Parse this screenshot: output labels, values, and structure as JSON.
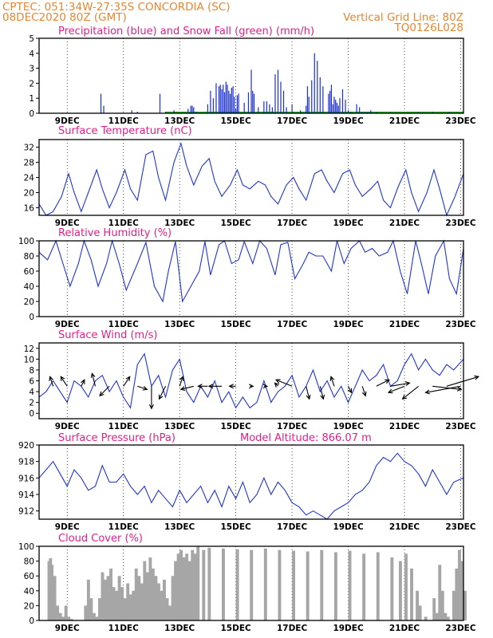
{
  "header": {
    "line1_left": "CPTEC:   051:34W-27:35S   CONCORDIA (SC)",
    "line2_left": "08DEC2020 80Z (GMT)",
    "line1_right": "Vertical Grid Line: 80Z",
    "line2_right": "TQ0126L028"
  },
  "colors": {
    "header": "#e8862e",
    "panel_title": "#e0208a",
    "line": "#2035d0",
    "rain": "#2035d0",
    "snow": "#22aa22",
    "cloud": "#a6a6a6"
  },
  "chart_data": [
    {
      "id": "precip",
      "type": "bar",
      "title": "Precipitation (blue) and Snow Fall (green) (mm/h)",
      "ylim": [
        0,
        5
      ],
      "yticks": [
        0,
        1,
        2,
        3,
        4,
        5
      ],
      "xticks": [
        "9DEC",
        "11DEC",
        "13DEC",
        "15DEC",
        "17DEC",
        "19DEC",
        "21DEC",
        "23DEC"
      ],
      "x_day_offsets": [
        1,
        3,
        5,
        7,
        9,
        11,
        13,
        15
      ],
      "x_days_span": 15.1,
      "snow_fall": 0,
      "x": [
        2.2,
        2.3,
        3.3,
        3.5,
        4.3,
        4.5,
        4.8,
        5.3,
        5.4,
        5.45,
        5.5,
        5.6,
        6.0,
        6.1,
        6.2,
        6.3,
        6.4,
        6.45,
        6.5,
        6.55,
        6.6,
        6.65,
        6.7,
        6.75,
        6.8,
        6.85,
        6.9,
        6.95,
        7.0,
        7.05,
        7.1,
        7.3,
        7.45,
        7.55,
        7.6,
        7.65,
        7.8,
        8.0,
        8.1,
        8.2,
        8.3,
        8.4,
        8.5,
        8.6,
        8.7,
        8.8,
        9.0,
        9.3,
        9.5,
        9.55,
        9.6,
        9.7,
        9.8,
        9.9,
        10.0,
        10.1,
        10.3,
        10.35,
        10.4,
        10.45,
        10.5,
        10.55,
        10.6,
        10.65,
        10.7,
        10.8,
        10.9,
        11.0,
        11.1,
        11.3,
        11.4,
        11.5,
        11.6,
        11.7,
        11.8,
        12.0,
        12.5,
        13.5,
        14.0,
        14.6
      ],
      "values": [
        1.3,
        0.5,
        0.2,
        0.1,
        1.3,
        0.1,
        0.2,
        0.3,
        0.5,
        0.5,
        0.4,
        0.1,
        0.6,
        1.5,
        1.0,
        2.0,
        1.8,
        1.9,
        1.6,
        1.9,
        1.4,
        2.1,
        1.9,
        1.5,
        1.3,
        1.7,
        1.8,
        1.1,
        0.3,
        1.2,
        1.3,
        0.7,
        1.4,
        2.9,
        1.5,
        1.3,
        0.4,
        0.8,
        0.8,
        0.6,
        0.4,
        2.6,
        2.9,
        2.1,
        1.5,
        0.4,
        0.6,
        0.2,
        0.5,
        1.8,
        1.1,
        2.2,
        4.0,
        3.5,
        2.4,
        1.8,
        1.3,
        1.5,
        1.9,
        0.6,
        1.1,
        0.9,
        0.7,
        0.5,
        1.0,
        1.6,
        0.9,
        0.2,
        0.1,
        0.6,
        0.4,
        0.1,
        0.1,
        0.1,
        0.2,
        0.1,
        0.1,
        0.1,
        0.1,
        0.1
      ]
    },
    {
      "id": "temperature",
      "type": "line",
      "title": "Surface Temperature (nC)",
      "ylim": [
        14,
        34
      ],
      "yticks": [
        16,
        20,
        24,
        28,
        32
      ],
      "xticks": [
        "9DEC",
        "11DEC",
        "13DEC",
        "15DEC",
        "17DEC",
        "19DEC",
        "21DEC",
        "23DEC"
      ],
      "x_day_offsets": [
        1,
        3,
        5,
        7,
        9,
        11,
        13,
        15
      ],
      "x_days_span": 15.1,
      "x": [
        0.0,
        0.25,
        0.5,
        0.8,
        1.05,
        1.25,
        1.5,
        1.75,
        2.05,
        2.25,
        2.5,
        2.75,
        3.05,
        3.25,
        3.5,
        3.8,
        4.05,
        4.25,
        4.5,
        4.8,
        5.05,
        5.25,
        5.5,
        5.8,
        6.05,
        6.25,
        6.5,
        6.8,
        7.05,
        7.25,
        7.5,
        7.8,
        8.05,
        8.25,
        8.5,
        8.8,
        9.05,
        9.25,
        9.5,
        9.8,
        10.05,
        10.25,
        10.5,
        10.8,
        11.05,
        11.25,
        11.5,
        11.8,
        12.05,
        12.25,
        12.5,
        12.8,
        13.05,
        13.25,
        13.5,
        13.8,
        14.05,
        14.25,
        14.5,
        14.8,
        15.1
      ],
      "values": [
        17,
        14,
        15,
        19,
        25,
        20,
        15,
        20,
        26,
        21,
        16,
        20,
        26,
        21,
        18,
        30,
        31,
        24,
        18,
        28,
        33,
        27,
        22,
        27,
        29,
        23,
        19,
        22,
        26,
        22,
        21,
        23,
        22,
        19,
        17,
        22,
        24,
        21,
        18,
        25,
        26,
        23,
        20,
        25,
        26,
        22,
        19,
        21,
        23,
        18,
        16,
        22,
        26,
        20,
        15,
        20,
        26,
        21,
        14,
        19,
        25
      ]
    },
    {
      "id": "humidity",
      "type": "line",
      "title": "Relative Humidity (%)",
      "ylim": [
        0,
        100
      ],
      "yticks": [
        0,
        20,
        40,
        60,
        80,
        100
      ],
      "xticks": [
        "9DEC",
        "11DEC",
        "13DEC",
        "15DEC",
        "17DEC",
        "19DEC",
        "21DEC",
        "23DEC"
      ],
      "x_day_offsets": [
        1,
        3,
        5,
        7,
        9,
        11,
        13,
        15
      ],
      "x_days_span": 15.1,
      "x": [
        0.0,
        0.3,
        0.6,
        0.85,
        1.1,
        1.4,
        1.6,
        1.85,
        2.1,
        2.4,
        2.6,
        2.85,
        3.1,
        3.5,
        3.8,
        4.1,
        4.4,
        4.6,
        4.85,
        5.1,
        5.4,
        5.7,
        5.9,
        6.1,
        6.4,
        6.6,
        6.85,
        7.1,
        7.3,
        7.6,
        7.85,
        8.1,
        8.4,
        8.6,
        8.85,
        9.1,
        9.4,
        9.6,
        9.85,
        10.1,
        10.4,
        10.6,
        10.85,
        11.1,
        11.4,
        11.6,
        11.85,
        12.1,
        12.4,
        12.6,
        12.85,
        13.1,
        13.4,
        13.6,
        13.85,
        14.1,
        14.4,
        14.6,
        14.85,
        15.1
      ],
      "values": [
        85,
        75,
        100,
        70,
        40,
        70,
        100,
        75,
        40,
        70,
        100,
        70,
        35,
        70,
        98,
        40,
        20,
        60,
        99,
        20,
        40,
        60,
        99,
        55,
        95,
        100,
        70,
        75,
        99,
        70,
        100,
        90,
        55,
        95,
        98,
        50,
        70,
        85,
        80,
        80,
        60,
        100,
        70,
        90,
        100,
        85,
        90,
        80,
        85,
        100,
        60,
        30,
        100,
        70,
        30,
        80,
        100,
        50,
        30,
        90
      ]
    },
    {
      "id": "wind",
      "type": "line",
      "title": "Surface Wind (m/s)",
      "ylim": [
        -1,
        13
      ],
      "yticks": [
        0,
        2,
        4,
        6,
        8,
        10,
        12
      ],
      "xticks": [
        "9DEC",
        "11DEC",
        "13DEC",
        "15DEC",
        "17DEC",
        "19DEC",
        "21DEC",
        "23DEC"
      ],
      "x_day_offsets": [
        1,
        3,
        5,
        7,
        9,
        11,
        13,
        15
      ],
      "x_days_span": 15.1,
      "x": [
        0.0,
        0.25,
        0.5,
        0.75,
        1.0,
        1.25,
        1.5,
        1.75,
        2.0,
        2.25,
        2.5,
        2.75,
        3.0,
        3.25,
        3.5,
        3.75,
        4.0,
        4.25,
        4.5,
        4.75,
        5.0,
        5.25,
        5.5,
        5.75,
        6.0,
        6.25,
        6.5,
        6.75,
        7.0,
        7.25,
        7.5,
        7.75,
        8.0,
        8.25,
        8.5,
        8.75,
        9.0,
        9.25,
        9.5,
        9.75,
        10.0,
        10.25,
        10.5,
        10.75,
        11.0,
        11.25,
        11.5,
        11.75,
        12.0,
        12.25,
        12.5,
        12.75,
        13.0,
        13.25,
        13.5,
        13.75,
        14.0,
        14.25,
        14.5,
        14.75,
        15.1
      ],
      "values": [
        3,
        4,
        6,
        4,
        2,
        6,
        5,
        3,
        6,
        7,
        4,
        6,
        3,
        1,
        9,
        11,
        5,
        7,
        3,
        8,
        10,
        4,
        2,
        5,
        3,
        6,
        2,
        4,
        1,
        3,
        1,
        2,
        6,
        2,
        4,
        5,
        7,
        3,
        5,
        8,
        4,
        6,
        3,
        5,
        2,
        5,
        8,
        6,
        7,
        9,
        5,
        6,
        9,
        11,
        8,
        10,
        8,
        7,
        9,
        8,
        10
      ],
      "vectors": {
        "x": [
          0.5,
          1.0,
          1.5,
          2.0,
          2.5,
          3.0,
          3.5,
          4.0,
          4.5,
          5.0,
          5.5,
          6.0,
          6.5,
          7.0,
          7.5,
          8.0,
          8.5,
          9.0,
          9.5,
          10.0,
          10.5,
          11.0,
          11.5,
          12.0,
          12.5,
          13.0,
          13.5,
          14.0,
          14.5,
          15.0
        ],
        "u": [
          -1,
          -2,
          1,
          -1,
          -3,
          2,
          3,
          0,
          -2,
          1,
          -4,
          -3,
          -4,
          -2,
          1,
          1,
          -1,
          -5,
          1,
          1,
          -1,
          1,
          1,
          4,
          6,
          -5,
          -5,
          9,
          10,
          -11
        ],
        "v": [
          3,
          3,
          2,
          4,
          -3,
          3,
          -1,
          -7,
          -4,
          3,
          -1,
          0,
          0,
          0,
          0,
          0,
          1,
          2,
          -4,
          -4,
          3,
          -2,
          -3,
          2,
          1,
          -2,
          -4,
          -1,
          3,
          -2
        ]
      }
    },
    {
      "id": "pressure",
      "type": "line",
      "title": "Surface Pressure (hPa)",
      "annotation": "Model Altitude: 866.07 m",
      "ylim": [
        911,
        920
      ],
      "yticks": [
        912,
        914,
        916,
        918,
        920
      ],
      "xticks": [
        "9DEC",
        "11DEC",
        "13DEC",
        "15DEC",
        "17DEC",
        "19DEC",
        "21DEC",
        "23DEC"
      ],
      "x_day_offsets": [
        1,
        3,
        5,
        7,
        9,
        11,
        13,
        15
      ],
      "x_days_span": 15.1,
      "x": [
        0.0,
        0.25,
        0.5,
        0.75,
        1.0,
        1.25,
        1.5,
        1.75,
        2.0,
        2.25,
        2.5,
        2.75,
        3.0,
        3.25,
        3.5,
        3.75,
        4.0,
        4.25,
        4.5,
        4.75,
        5.0,
        5.25,
        5.5,
        5.75,
        6.0,
        6.25,
        6.5,
        6.75,
        7.0,
        7.25,
        7.5,
        7.75,
        8.0,
        8.25,
        8.5,
        8.75,
        9.0,
        9.25,
        9.5,
        9.75,
        10.0,
        10.25,
        10.5,
        10.75,
        11.0,
        11.25,
        11.5,
        11.75,
        12.0,
        12.25,
        12.5,
        12.75,
        13.0,
        13.25,
        13.5,
        13.75,
        14.0,
        14.25,
        14.5,
        14.75,
        15.1
      ],
      "values": [
        916,
        917,
        918,
        916.5,
        915,
        917,
        916,
        914.5,
        915,
        917.5,
        915.5,
        915.5,
        916.5,
        915,
        914,
        915,
        913,
        914.5,
        913.5,
        912.5,
        914.5,
        913,
        914,
        915,
        913,
        914.5,
        912.5,
        915,
        913.5,
        915.5,
        913,
        914,
        916,
        914,
        915.5,
        914.5,
        913,
        912.5,
        911.5,
        912,
        911.5,
        911,
        912,
        912.5,
        913,
        914,
        914.5,
        915.5,
        917.5,
        918.5,
        918,
        919,
        918,
        917.5,
        916.5,
        915,
        917,
        915.5,
        914,
        915.5,
        916
      ]
    },
    {
      "id": "cloud",
      "type": "area",
      "title": "Cloud Cover (%)",
      "ylim": [
        0,
        100
      ],
      "yticks": [
        0,
        20,
        40,
        60,
        80,
        100
      ],
      "xticks": [
        "9DEC",
        "11DEC",
        "13DEC",
        "15DEC",
        "17DEC",
        "19DEC",
        "21DEC",
        "23DEC"
      ],
      "x_day_offsets": [
        1,
        3,
        5,
        7,
        9,
        11,
        13,
        15
      ],
      "x_days_span": 15.1,
      "x": [
        0.0,
        0.2,
        0.3,
        0.35,
        0.4,
        0.5,
        0.6,
        0.7,
        0.8,
        0.9,
        1.0,
        1.1,
        1.3,
        1.5,
        1.6,
        1.7,
        1.8,
        1.9,
        2.0,
        2.1,
        2.2,
        2.3,
        2.4,
        2.5,
        2.6,
        2.7,
        2.8,
        2.9,
        3.0,
        3.1,
        3.2,
        3.3,
        3.4,
        3.5,
        3.6,
        3.7,
        3.8,
        3.9,
        4.0,
        4.1,
        4.2,
        4.3,
        4.4,
        4.5,
        4.6,
        4.7,
        4.8,
        4.9,
        5.0,
        5.1,
        5.2,
        5.3,
        5.4,
        5.5,
        5.6,
        5.8,
        6.0,
        6.5,
        7.0,
        7.5,
        8.0,
        8.5,
        9.0,
        9.5,
        10.0,
        10.5,
        11.0,
        11.5,
        12.0,
        12.5,
        12.8,
        13.0,
        13.2,
        13.4,
        13.5,
        13.6,
        13.7,
        13.8,
        13.9,
        14.0,
        14.1,
        14.2,
        14.3,
        14.4,
        14.5,
        14.6,
        14.7,
        14.8,
        14.9,
        15.0,
        15.1
      ],
      "values": [
        0,
        0,
        80,
        84,
        75,
        60,
        20,
        10,
        5,
        20,
        5,
        2,
        0,
        0,
        20,
        55,
        30,
        10,
        5,
        30,
        65,
        55,
        60,
        70,
        45,
        40,
        60,
        45,
        30,
        50,
        35,
        40,
        70,
        60,
        50,
        80,
        65,
        85,
        70,
        60,
        50,
        40,
        55,
        30,
        20,
        60,
        80,
        90,
        95,
        85,
        90,
        80,
        95,
        90,
        100,
        95,
        98,
        97,
        96,
        95,
        97,
        95,
        94,
        93,
        95,
        92,
        94,
        90,
        92,
        85,
        80,
        90,
        70,
        40,
        20,
        0,
        5,
        0,
        0,
        30,
        10,
        75,
        40,
        10,
        5,
        0,
        40,
        70,
        95,
        80,
        40
      ]
    }
  ]
}
